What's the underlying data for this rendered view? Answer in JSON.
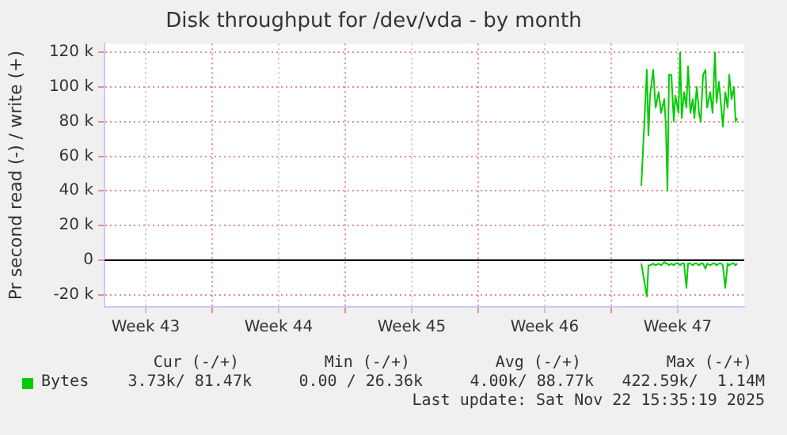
{
  "chart_data": {
    "type": "line",
    "title": "Disk throughput for /dev/vda - by month",
    "ylabel": "Pr second read (-) / write (+)",
    "x": [
      "2025-11-18T14:00",
      "2025-11-18T21:00",
      "2025-11-18T23:00",
      "2025-11-19T01:00",
      "2025-11-19T05:00",
      "2025-11-19T08:00",
      "2025-11-19T12:00",
      "2025-11-19T15:00",
      "2025-11-19T19:00",
      "2025-11-19T21:00",
      "2025-11-19T23:00",
      "2025-11-20T01:00",
      "2025-11-20T04:00",
      "2025-11-20T07:00",
      "2025-11-20T09:00",
      "2025-11-20T13:00",
      "2025-11-20T15:00",
      "2025-11-20T17:00",
      "2025-11-20T20:00",
      "2025-11-20T23:00",
      "2025-11-21T01:00",
      "2025-11-21T04:00",
      "2025-11-21T07:00",
      "2025-11-21T09:00",
      "2025-11-21T12:00",
      "2025-11-21T15:00",
      "2025-11-21T17:00",
      "2025-11-21T20:00",
      "2025-11-21T23:00",
      "2025-11-22T01:00",
      "2025-11-22T05:00",
      "2025-11-22T08:00",
      "2025-11-22T11:00",
      "2025-11-22T13:00",
      "2025-11-22T16:00",
      "2025-11-22T19:00",
      "2025-11-22T21:00",
      "2025-11-23T00:00",
      "2025-11-23T03:00",
      "2025-11-23T05:00",
      "2025-11-23T08:00",
      "2025-11-23T11:00",
      "2025-11-23T13:00",
      "2025-11-23T15:00"
    ],
    "series": [
      {
        "name": "Bytes",
        "color": "#00cc00",
        "values": [
          43000,
          110000,
          72000,
          95000,
          110000,
          88000,
          97000,
          85000,
          93000,
          78000,
          40000,
          107000,
          107000,
          80000,
          95000,
          85000,
          120000,
          82000,
          97000,
          88000,
          112000,
          85000,
          93000,
          82000,
          100000,
          85000,
          80000,
          107000,
          110000,
          88000,
          97000,
          85000,
          120000,
          91000,
          103000,
          88000,
          77000,
          97000,
          88000,
          107000,
          93000,
          100000,
          80000,
          82000
        ]
      },
      {
        "color": "#00cc00",
        "values": [
          -2000,
          -21000,
          -3000,
          -3000,
          -2000,
          -3000,
          -2000,
          -3000,
          -1000,
          -2000,
          -2000,
          -3000,
          -2000,
          -3000,
          -2000,
          -2000,
          -3000,
          -2000,
          -2000,
          -16000,
          -2000,
          -2000,
          -3000,
          -2000,
          -2000,
          -3000,
          -2000,
          -2000,
          -5000,
          -2000,
          -3000,
          -2000,
          -2000,
          -3000,
          -2000,
          -2000,
          -3000,
          -16000,
          -2000,
          -3000,
          -2000,
          -2000,
          -3000,
          -2000
        ]
      }
    ],
    "xlim": [
      "2025-10-21T08:00",
      "2025-11-24T00:00"
    ],
    "xticks": [
      {
        "value": "2025-10-23T12:00",
        "label": "Week 43"
      },
      {
        "value": "2025-10-27T00:00",
        "label": null
      },
      {
        "value": "2025-10-30T12:00",
        "label": "Week 44"
      },
      {
        "value": "2025-11-03T00:00",
        "label": null
      },
      {
        "value": "2025-11-06T12:00",
        "label": "Week 45"
      },
      {
        "value": "2025-11-10T00:00",
        "label": null
      },
      {
        "value": "2025-11-13T12:00",
        "label": "Week 46"
      },
      {
        "value": "2025-11-17T00:00",
        "label": null
      },
      {
        "value": "2025-11-20T12:00",
        "label": "Week 47"
      }
    ],
    "ylim": [
      -27000,
      125000
    ],
    "yticks": [
      {
        "value": -20000,
        "label": "-20 k"
      },
      0,
      {
        "value": 20000,
        "label": "20 k"
      },
      {
        "value": 40000,
        "label": "40 k"
      },
      {
        "value": 60000,
        "label": "60 k"
      },
      {
        "value": 80000,
        "label": "80 k"
      },
      {
        "value": 100000,
        "label": "100 k"
      },
      {
        "value": 120000,
        "label": "120 k"
      }
    ],
    "ref_lines": [
      {
        "axis": "y",
        "value": 0,
        "color": "#000000"
      }
    ],
    "grid": true,
    "legend": "bottom",
    "marker": "none",
    "line_style": "solid",
    "annotations": [
      "Cur (-/+)",
      "Min (-/+)",
      "Avg (-/+)",
      "Max (-/+)",
      "3.73k/ 81.47k",
      "0.00 / 26.36k",
      "4.00k/ 88.77k",
      "422.59k/  1.14M",
      "Last update: Sat Nov 22 15:35:19 2025"
    ]
  }
}
